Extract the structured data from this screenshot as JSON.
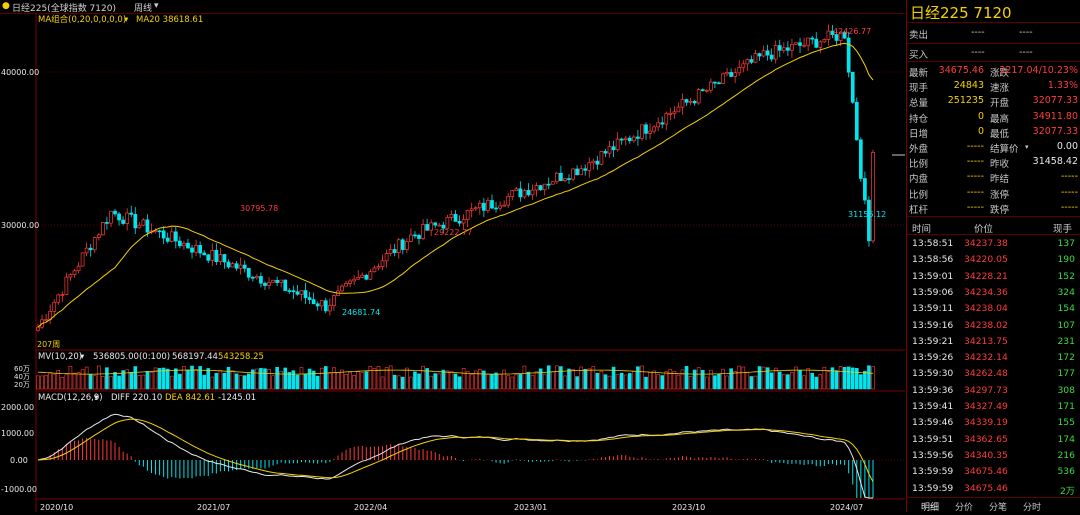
{
  "header": {
    "bullet": "●",
    "instrument": "日经225(全球指数 7120)",
    "period": "周线",
    "period_caret": "▾"
  },
  "indicators": {
    "ma_label": "MA组合(0,20,0,0,0,0)",
    "ma_caret": "▾",
    "ma20_text": "MA20 38618.61",
    "mv_label": "MV(10,20)",
    "mv_caret": "▾",
    "mv_value1": "536805.00(0:100)",
    "mv_value2": "568197.44",
    "mv_value3": "543258.25",
    "macd_label": "MACD(12,26,9)",
    "macd_caret": "▾",
    "macd_diff": "DIFF 220.10",
    "macd_dea": "DEA 842.61",
    "macd_hist": "-1245.01"
  },
  "price_axis": {
    "top": "40000.00",
    "mid": "30000.00"
  },
  "vol_axis": {
    "a": "60万",
    "b": "40万",
    "c": "20万"
  },
  "macd_axis": {
    "a": "2000.00",
    "b": "1000.00",
    "c": "0.00",
    "d": "-1000.00"
  },
  "x_axis": [
    "2020/10",
    "2021/07",
    "2022/04",
    "2023/01",
    "2023/10",
    "2024/07"
  ],
  "annotations": {
    "start_label": "207周",
    "high1": "30795.78",
    "low1": "24681.74",
    "high2": "29222.77",
    "high3": "42426.77",
    "low3": "31156.12"
  },
  "chart_data": {
    "type": "candlestick",
    "title": "日经225 周线",
    "price_ylim": [
      22000,
      43500
    ],
    "ma_period": 20,
    "key_points": [
      {
        "x": "2020/10",
        "price": 23300
      },
      {
        "x": "2021/02",
        "price": 30795.78,
        "label": "high"
      },
      {
        "x": "2022/03",
        "price": 24681.74,
        "label": "low"
      },
      {
        "x": "2022/08",
        "price": 29222.77,
        "label": "high"
      },
      {
        "x": "2023/06",
        "price": 33700
      },
      {
        "x": "2024/03",
        "price": 41000
      },
      {
        "x": "2024/07",
        "price": 42426.77,
        "label": "high"
      },
      {
        "x": "2024/08",
        "price": 31156.12,
        "label": "low"
      }
    ],
    "last_close": 34675.46,
    "macd": {
      "diff": 220.1,
      "dea": 842.61,
      "hist": -1245.01
    },
    "volume": {
      "v1": 568197.44,
      "v2": 543258.25
    }
  },
  "quote": {
    "title": "日经225  7120",
    "ask_label": "卖出",
    "ask_price": "----",
    "ask_vol": "----",
    "bid_label": "买入",
    "bid_price": "----",
    "bid_vol": "----",
    "rows": [
      {
        "l1": "最新",
        "v1": "34675.46",
        "c1": "red",
        "l2": "涨跌",
        "v2": "3217.04/10.23%",
        "c2": "red"
      },
      {
        "l1": "现手",
        "v1": "24843",
        "c1": "yel",
        "l2": "速涨",
        "v2": "1.33%",
        "c2": "red"
      },
      {
        "l1": "总量",
        "v1": "251235",
        "c1": "yel",
        "l2": "开盘",
        "v2": "32077.33",
        "c2": "red"
      },
      {
        "l1": "持仓",
        "v1": "0",
        "c1": "yel",
        "l2": "最高",
        "v2": "34911.80",
        "c2": "red"
      },
      {
        "l1": "日增",
        "v1": "0",
        "c1": "yel",
        "l2": "最低",
        "v2": "32077.33",
        "c2": "red"
      },
      {
        "l1": "外盘",
        "v1": "-----",
        "c1": "yel",
        "l2": "结算价",
        "v2": "0.00",
        "c2": "wht"
      },
      {
        "l1": "比例",
        "v1": "-----",
        "c1": "yel",
        "l2": "昨收",
        "v2": "31458.42",
        "c2": "wht"
      },
      {
        "l1": "内盘",
        "v1": "-----",
        "c1": "yel",
        "l2": "昨结",
        "v2": "-----",
        "c2": "yel"
      },
      {
        "l1": "比例",
        "v1": "-----",
        "c1": "yel",
        "l2": "涨停",
        "v2": "-----",
        "c2": "yel"
      },
      {
        "l1": "杠杆",
        "v1": "-----",
        "c1": "yel",
        "l2": "跌停",
        "v2": "-----",
        "c2": "yel"
      }
    ],
    "settle_caret": "▾",
    "ticks_header": {
      "time": "时间",
      "price": "价位",
      "vol": "现手"
    },
    "ticks": [
      {
        "t": "13:58:51",
        "p": "34237.38",
        "v": "137"
      },
      {
        "t": "13:58:56",
        "p": "34220.05",
        "v": "190"
      },
      {
        "t": "13:59:01",
        "p": "34228.21",
        "v": "152"
      },
      {
        "t": "13:59:06",
        "p": "34234.36",
        "v": "324"
      },
      {
        "t": "13:59:11",
        "p": "34238.04",
        "v": "154"
      },
      {
        "t": "13:59:16",
        "p": "34238.02",
        "v": "107"
      },
      {
        "t": "13:59:21",
        "p": "34213.75",
        "v": "231"
      },
      {
        "t": "13:59:26",
        "p": "34232.14",
        "v": "172"
      },
      {
        "t": "13:59:30",
        "p": "34262.48",
        "v": "177"
      },
      {
        "t": "13:59:36",
        "p": "34297.73",
        "v": "308"
      },
      {
        "t": "13:59:41",
        "p": "34327.49",
        "v": "171"
      },
      {
        "t": "13:59:46",
        "p": "34339.19",
        "v": "155"
      },
      {
        "t": "13:59:51",
        "p": "34362.65",
        "v": "174"
      },
      {
        "t": "13:59:56",
        "p": "34340.35",
        "v": "216"
      },
      {
        "t": "13:59:59",
        "p": "34675.46",
        "v": "536"
      },
      {
        "t": "13:59:59",
        "p": "34675.46",
        "v": "2万"
      }
    ],
    "tabs": [
      "明细",
      "分价",
      "分笔",
      "分时"
    ]
  },
  "colors": {
    "up": "#ff3b3b",
    "down": "#00e5ee",
    "ma": "#f5d000",
    "grid": "#7a0000"
  }
}
